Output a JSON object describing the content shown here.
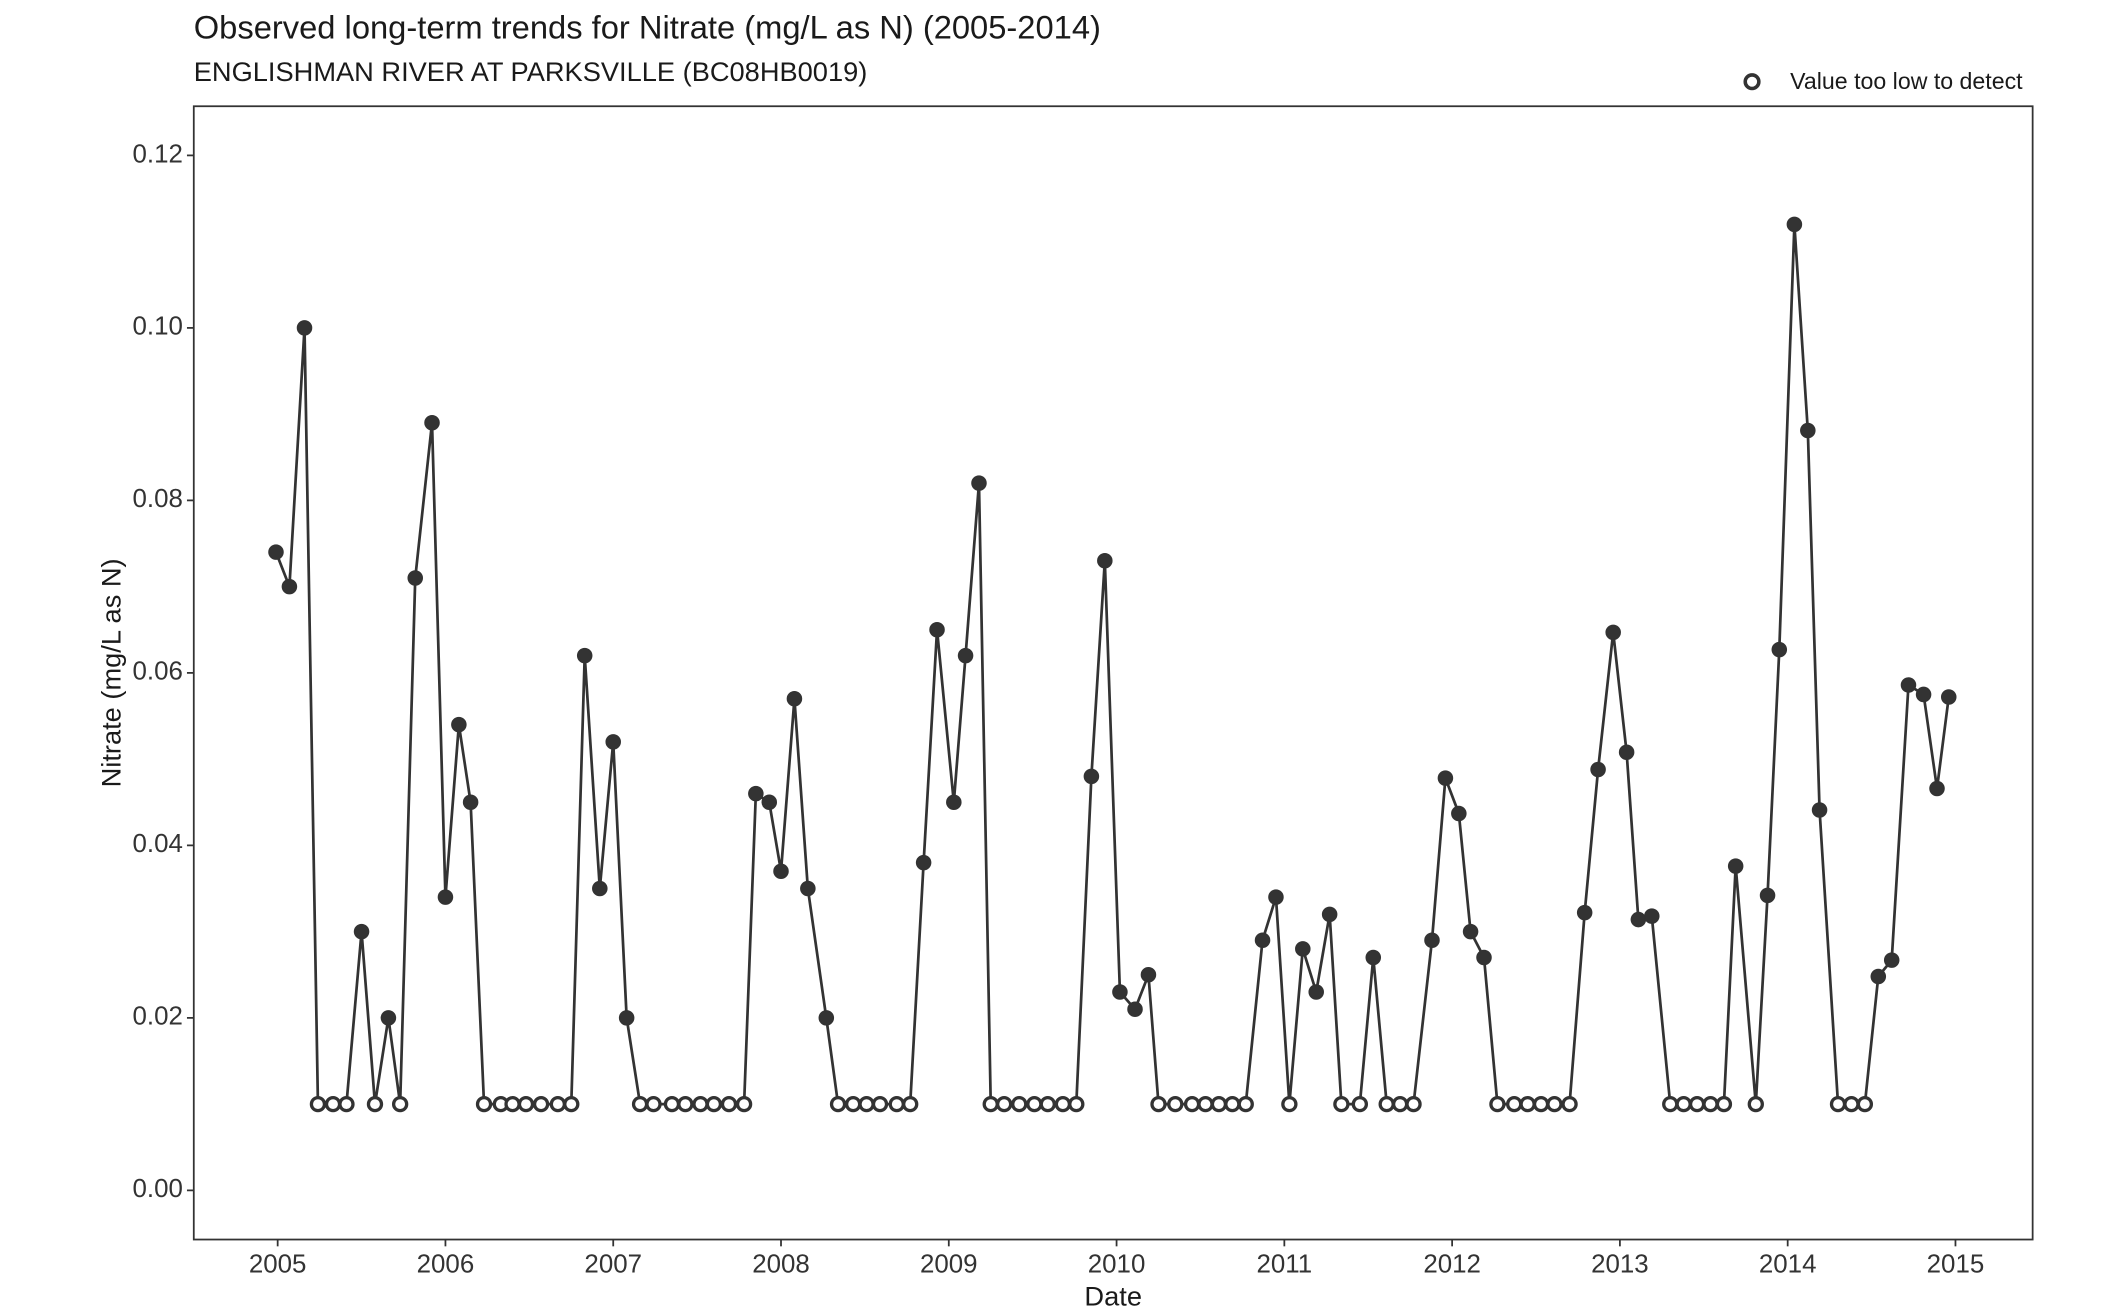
{
  "chart_data": {
    "type": "line",
    "title": "Observed long-term trends for Nitrate (mg/L as N) (2005-2014)",
    "subtitle": "ENGLISHMAN RIVER AT PARKSVILLE (BC08HB0019)",
    "xlabel": "Date",
    "ylabel": "Nitrate (mg/L as N)",
    "legend": {
      "label": "Value too low to detect",
      "position": "top-right"
    },
    "xlim": [
      2004.5,
      2015.46
    ],
    "xticks": [
      2005,
      2006,
      2007,
      2008,
      2009,
      2010,
      2011,
      2012,
      2013,
      2014,
      2015
    ],
    "ylim": [
      -0.0057,
      0.1257
    ],
    "yticks": [
      {
        "value": 0,
        "label": "0.00"
      },
      0.02,
      0.04,
      0.06,
      0.08,
      {
        "value": 0.1,
        "label": "0.10"
      },
      0.12
    ],
    "grid": false,
    "series": [
      {
        "color": "#333333",
        "x": [
          2004.99,
          2005.07,
          2005.16,
          2005.24,
          2005.33,
          2005.41,
          2005.5,
          2005.58,
          2005.66,
          2005.73,
          2005.82,
          2005.92,
          2006.0,
          2006.08,
          2006.15,
          2006.23,
          2006.33,
          2006.4,
          2006.48,
          2006.57,
          2006.67,
          2006.75,
          2006.83,
          2006.92,
          2007.0,
          2007.08,
          2007.16,
          2007.24,
          2007.35,
          2007.43,
          2007.52,
          2007.6,
          2007.69,
          2007.78,
          2007.85,
          2007.93,
          2008.0,
          2008.08,
          2008.16,
          2008.27,
          2008.34,
          2008.43,
          2008.51,
          2008.59,
          2008.69,
          2008.77,
          2008.85,
          2008.93,
          2009.03,
          2009.1,
          2009.18,
          2009.25,
          2009.33,
          2009.42,
          2009.51,
          2009.59,
          2009.68,
          2009.76,
          2009.85,
          2009.93,
          2010.02,
          2010.11,
          2010.19,
          2010.25,
          2010.35,
          2010.45,
          2010.53,
          2010.61,
          2010.69,
          2010.77,
          2010.87,
          2010.95,
          2011.03,
          2011.11,
          2011.19,
          2011.27,
          2011.34,
          2011.45,
          2011.53,
          2011.61,
          2011.69,
          2011.77,
          2011.88,
          2011.96,
          2012.04,
          2012.11,
          2012.19,
          2012.27,
          2012.37,
          2012.45,
          2012.53,
          2012.61,
          2012.7,
          2012.79,
          2012.87,
          2012.96,
          2013.04,
          2013.11,
          2013.19,
          2013.3,
          2013.38,
          2013.46,
          2013.54,
          2013.62,
          2013.69,
          2013.81,
          2013.88,
          2013.95,
          2014.04,
          2014.12,
          2014.19,
          2014.3,
          2014.38,
          2014.46,
          2014.54,
          2014.62,
          2014.72,
          2014.81,
          2014.89,
          2014.96
        ],
        "values": [
          0.074,
          0.07,
          0.1,
          0.01,
          0.01,
          0.01,
          0.03,
          0.01,
          0.02,
          0.01,
          0.071,
          0.089,
          0.034,
          0.054,
          0.045,
          0.01,
          0.01,
          0.01,
          0.01,
          0.01,
          0.01,
          0.01,
          0.062,
          0.035,
          0.052,
          0.02,
          0.01,
          0.01,
          0.01,
          0.01,
          0.01,
          0.01,
          0.01,
          0.01,
          0.046,
          0.045,
          0.037,
          0.057,
          0.035,
          0.02,
          0.01,
          0.01,
          0.01,
          0.01,
          0.01,
          0.01,
          0.038,
          0.065,
          0.045,
          0.062,
          0.082,
          0.01,
          0.01,
          0.01,
          0.01,
          0.01,
          0.01,
          0.01,
          0.048,
          0.073,
          0.023,
          0.021,
          0.025,
          0.01,
          0.01,
          0.01,
          0.01,
          0.01,
          0.01,
          0.01,
          0.029,
          0.034,
          0.01,
          0.028,
          0.023,
          0.032,
          0.01,
          0.01,
          0.027,
          0.01,
          0.01,
          0.01,
          0.029,
          0.0478,
          0.0437,
          0.03,
          0.027,
          0.01,
          0.01,
          0.01,
          0.01,
          0.01,
          0.01,
          0.0322,
          0.0488,
          0.0647,
          0.0508,
          0.0314,
          0.0318,
          0.01,
          0.01,
          0.01,
          0.01,
          0.01,
          0.0376,
          0.01,
          0.0342,
          0.0627,
          0.112,
          0.0881,
          0.0441,
          0.01,
          0.01,
          0.01,
          0.0248,
          0.0267,
          0.0586,
          0.0575,
          0.0466,
          0.0572
        ],
        "below_detection": [
          false,
          false,
          false,
          true,
          true,
          true,
          false,
          true,
          false,
          true,
          false,
          false,
          false,
          false,
          false,
          true,
          true,
          true,
          true,
          true,
          true,
          true,
          false,
          false,
          false,
          false,
          true,
          true,
          true,
          true,
          true,
          true,
          true,
          true,
          false,
          false,
          false,
          false,
          false,
          false,
          true,
          true,
          true,
          true,
          true,
          true,
          false,
          false,
          false,
          false,
          false,
          true,
          true,
          true,
          true,
          true,
          true,
          true,
          false,
          false,
          false,
          false,
          false,
          true,
          true,
          true,
          true,
          true,
          true,
          true,
          false,
          false,
          true,
          false,
          false,
          false,
          true,
          true,
          false,
          true,
          true,
          true,
          false,
          false,
          false,
          false,
          false,
          true,
          true,
          true,
          true,
          true,
          true,
          false,
          false,
          false,
          false,
          false,
          false,
          true,
          true,
          true,
          true,
          true,
          false,
          true,
          false,
          false,
          false,
          false,
          false,
          true,
          true,
          true,
          false,
          false,
          false,
          false,
          false,
          false
        ]
      }
    ]
  }
}
